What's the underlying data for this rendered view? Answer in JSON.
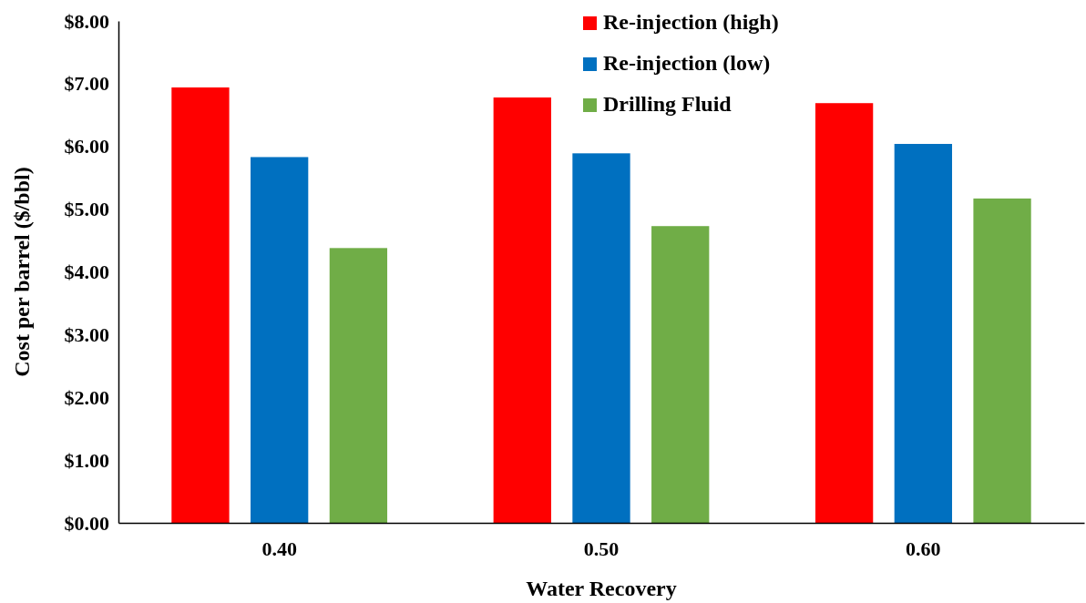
{
  "chart_data": {
    "type": "bar",
    "xlabel": "Water Recovery",
    "ylabel": "Cost per barrel ($/bbl)",
    "categories": [
      "0.40",
      "0.50",
      "0.60"
    ],
    "series": [
      {
        "name": "Re-injection (high)",
        "color": "#ff0000",
        "values": [
          6.94,
          6.78,
          6.69
        ]
      },
      {
        "name": "Re-injection (low)",
        "color": "#0070c0",
        "values": [
          5.83,
          5.89,
          6.04
        ]
      },
      {
        "name": "Drilling Fluid",
        "color": "#70ad47",
        "values": [
          4.38,
          4.73,
          5.17
        ]
      }
    ],
    "ylim": [
      0,
      8
    ],
    "yticks": [
      {
        "value": 0,
        "label": "$0.00"
      },
      {
        "value": 1,
        "label": "$1.00"
      },
      {
        "value": 2,
        "label": "$2.00"
      },
      {
        "value": 3,
        "label": "$3.00"
      },
      {
        "value": 4,
        "label": "$4.00"
      },
      {
        "value": 5,
        "label": "$5.00"
      },
      {
        "value": 6,
        "label": "$6.00"
      },
      {
        "value": 7,
        "label": "$7.00"
      },
      {
        "value": 8,
        "label": "$8.00"
      }
    ],
    "grid": false,
    "legend": "top right"
  }
}
